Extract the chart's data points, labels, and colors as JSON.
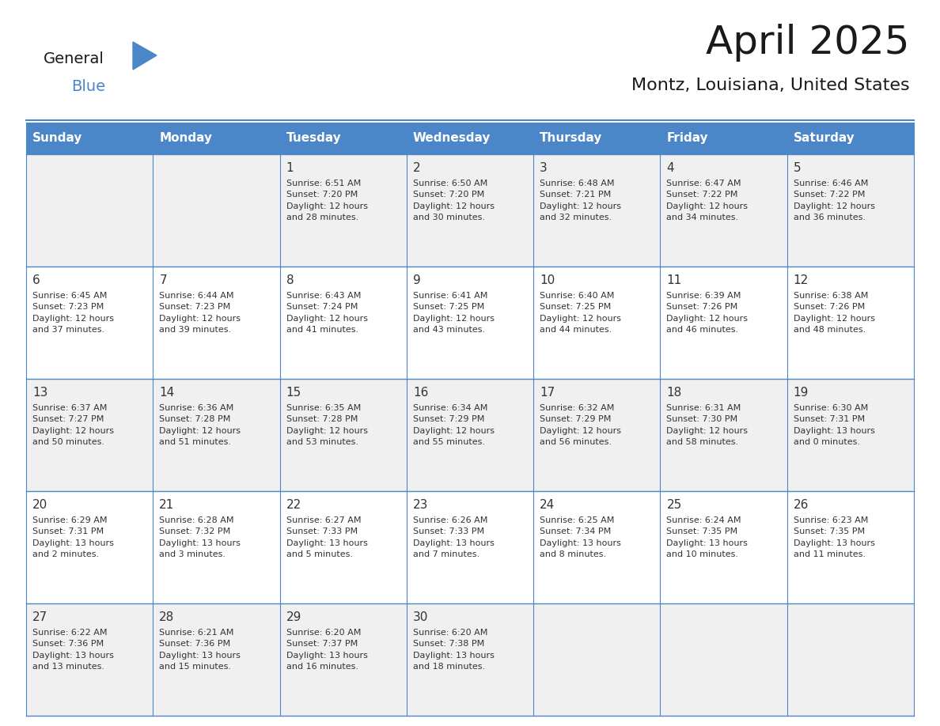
{
  "title": "April 2025",
  "subtitle": "Montz, Louisiana, United States",
  "days_of_week": [
    "Sunday",
    "Monday",
    "Tuesday",
    "Wednesday",
    "Thursday",
    "Friday",
    "Saturday"
  ],
  "header_bg": "#4a86c8",
  "header_text": "#ffffff",
  "row_bg_odd": "#f0f0f0",
  "row_bg_even": "#ffffff",
  "cell_text_color": "#333333",
  "border_color": "#4a86c8",
  "calendar": [
    [
      {
        "day": "",
        "text": ""
      },
      {
        "day": "",
        "text": ""
      },
      {
        "day": "1",
        "text": "Sunrise: 6:51 AM\nSunset: 7:20 PM\nDaylight: 12 hours\nand 28 minutes."
      },
      {
        "day": "2",
        "text": "Sunrise: 6:50 AM\nSunset: 7:20 PM\nDaylight: 12 hours\nand 30 minutes."
      },
      {
        "day": "3",
        "text": "Sunrise: 6:48 AM\nSunset: 7:21 PM\nDaylight: 12 hours\nand 32 minutes."
      },
      {
        "day": "4",
        "text": "Sunrise: 6:47 AM\nSunset: 7:22 PM\nDaylight: 12 hours\nand 34 minutes."
      },
      {
        "day": "5",
        "text": "Sunrise: 6:46 AM\nSunset: 7:22 PM\nDaylight: 12 hours\nand 36 minutes."
      }
    ],
    [
      {
        "day": "6",
        "text": "Sunrise: 6:45 AM\nSunset: 7:23 PM\nDaylight: 12 hours\nand 37 minutes."
      },
      {
        "day": "7",
        "text": "Sunrise: 6:44 AM\nSunset: 7:23 PM\nDaylight: 12 hours\nand 39 minutes."
      },
      {
        "day": "8",
        "text": "Sunrise: 6:43 AM\nSunset: 7:24 PM\nDaylight: 12 hours\nand 41 minutes."
      },
      {
        "day": "9",
        "text": "Sunrise: 6:41 AM\nSunset: 7:25 PM\nDaylight: 12 hours\nand 43 minutes."
      },
      {
        "day": "10",
        "text": "Sunrise: 6:40 AM\nSunset: 7:25 PM\nDaylight: 12 hours\nand 44 minutes."
      },
      {
        "day": "11",
        "text": "Sunrise: 6:39 AM\nSunset: 7:26 PM\nDaylight: 12 hours\nand 46 minutes."
      },
      {
        "day": "12",
        "text": "Sunrise: 6:38 AM\nSunset: 7:26 PM\nDaylight: 12 hours\nand 48 minutes."
      }
    ],
    [
      {
        "day": "13",
        "text": "Sunrise: 6:37 AM\nSunset: 7:27 PM\nDaylight: 12 hours\nand 50 minutes."
      },
      {
        "day": "14",
        "text": "Sunrise: 6:36 AM\nSunset: 7:28 PM\nDaylight: 12 hours\nand 51 minutes."
      },
      {
        "day": "15",
        "text": "Sunrise: 6:35 AM\nSunset: 7:28 PM\nDaylight: 12 hours\nand 53 minutes."
      },
      {
        "day": "16",
        "text": "Sunrise: 6:34 AM\nSunset: 7:29 PM\nDaylight: 12 hours\nand 55 minutes."
      },
      {
        "day": "17",
        "text": "Sunrise: 6:32 AM\nSunset: 7:29 PM\nDaylight: 12 hours\nand 56 minutes."
      },
      {
        "day": "18",
        "text": "Sunrise: 6:31 AM\nSunset: 7:30 PM\nDaylight: 12 hours\nand 58 minutes."
      },
      {
        "day": "19",
        "text": "Sunrise: 6:30 AM\nSunset: 7:31 PM\nDaylight: 13 hours\nand 0 minutes."
      }
    ],
    [
      {
        "day": "20",
        "text": "Sunrise: 6:29 AM\nSunset: 7:31 PM\nDaylight: 13 hours\nand 2 minutes."
      },
      {
        "day": "21",
        "text": "Sunrise: 6:28 AM\nSunset: 7:32 PM\nDaylight: 13 hours\nand 3 minutes."
      },
      {
        "day": "22",
        "text": "Sunrise: 6:27 AM\nSunset: 7:33 PM\nDaylight: 13 hours\nand 5 minutes."
      },
      {
        "day": "23",
        "text": "Sunrise: 6:26 AM\nSunset: 7:33 PM\nDaylight: 13 hours\nand 7 minutes."
      },
      {
        "day": "24",
        "text": "Sunrise: 6:25 AM\nSunset: 7:34 PM\nDaylight: 13 hours\nand 8 minutes."
      },
      {
        "day": "25",
        "text": "Sunrise: 6:24 AM\nSunset: 7:35 PM\nDaylight: 13 hours\nand 10 minutes."
      },
      {
        "day": "26",
        "text": "Sunrise: 6:23 AM\nSunset: 7:35 PM\nDaylight: 13 hours\nand 11 minutes."
      }
    ],
    [
      {
        "day": "27",
        "text": "Sunrise: 6:22 AM\nSunset: 7:36 PM\nDaylight: 13 hours\nand 13 minutes."
      },
      {
        "day": "28",
        "text": "Sunrise: 6:21 AM\nSunset: 7:36 PM\nDaylight: 13 hours\nand 15 minutes."
      },
      {
        "day": "29",
        "text": "Sunrise: 6:20 AM\nSunset: 7:37 PM\nDaylight: 13 hours\nand 16 minutes."
      },
      {
        "day": "30",
        "text": "Sunrise: 6:20 AM\nSunset: 7:38 PM\nDaylight: 13 hours\nand 18 minutes."
      },
      {
        "day": "",
        "text": ""
      },
      {
        "day": "",
        "text": ""
      },
      {
        "day": "",
        "text": ""
      }
    ]
  ],
  "logo_triangle_color": "#4a86c8",
  "logo_blue_color": "#4a86c8",
  "logo_general_color": "#1a1a1a"
}
